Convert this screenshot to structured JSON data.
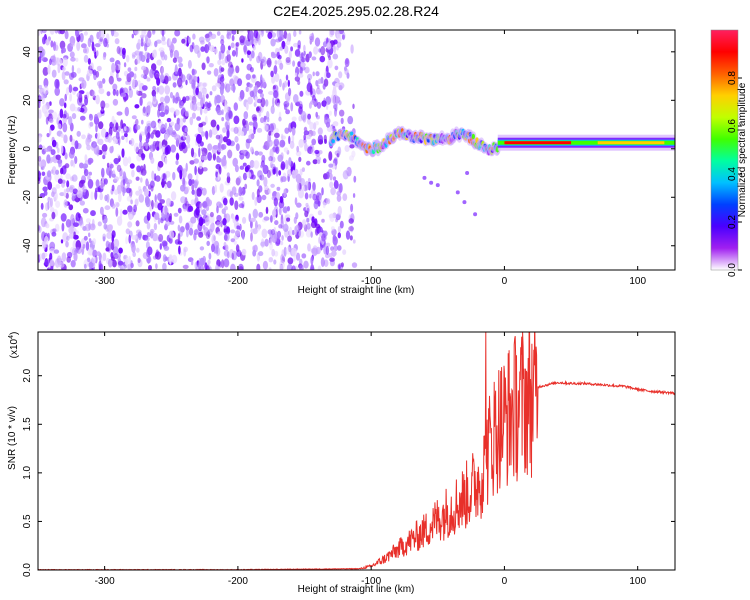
{
  "figure_title": "C2E4.2025.295.02.28.R24",
  "chart_data": [
    {
      "type": "heatmap",
      "title": "C2E4.2025.295.02.28.R24",
      "xlabel": "Height of straight line (km)",
      "ylabel": "Frequency (Hz)",
      "xlim": [
        -350,
        128
      ],
      "ylim": [
        -50,
        49
      ],
      "xticks": [
        -300,
        -200,
        -100,
        0,
        100
      ],
      "yticks": [
        -40,
        -20,
        0,
        20,
        40
      ],
      "colorbar": {
        "label": "Normalized spectral amplitude",
        "range": [
          0,
          1
        ],
        "ticks": [
          0.0,
          0.2,
          0.4,
          0.6,
          0.8
        ],
        "tick_labels": [
          "0.0",
          "0.2",
          "0.4",
          "0.6",
          "0.8"
        ],
        "colors": [
          "#ffffff",
          "#a020f0",
          "#4a00ff",
          "#0040ff",
          "#00c0ff",
          "#00ffa0",
          "#40ff00",
          "#c0ff00",
          "#ffd000",
          "#ff6000",
          "#ff0000",
          "#ff2060"
        ]
      },
      "regions": [
        {
          "name": "noise",
          "x_range": [
            -350,
            -112
          ],
          "freq_range": [
            -50,
            49
          ],
          "amplitude": 0.15
        },
        {
          "name": "transition",
          "x_range": [
            -130,
            -5
          ],
          "freq_center": 3,
          "amplitude": 0.5
        },
        {
          "name": "carrier",
          "x_range": [
            -5,
            128
          ],
          "freq_center": 2.5,
          "amplitude": 0.9
        }
      ]
    },
    {
      "type": "line",
      "xlabel": "Height of straight line (km)",
      "ylabel": "SNR (10 * v/v)",
      "y_multiplier": "(x10",
      "y_multiplier_exp": "4",
      "color": "#e8302a",
      "xlim": [
        -350,
        128
      ],
      "ylim": [
        0,
        2.45
      ],
      "xticks": [
        -300,
        -200,
        -100,
        0,
        100
      ],
      "yticks": [
        0.0,
        0.5,
        1.0,
        1.5,
        2.0
      ],
      "ytick_labels": [
        "0.0",
        "0.5",
        "1.0",
        "1.5",
        "2.0"
      ],
      "series": [
        {
          "name": "SNR",
          "x": [
            -350,
            -200,
            -110,
            -100,
            -90,
            -80,
            -70,
            -60,
            -50,
            -40,
            -30,
            -20,
            -15,
            -10,
            -5,
            0,
            10,
            20,
            30,
            40,
            50,
            60,
            70,
            80,
            90,
            100,
            110,
            120,
            128
          ],
          "y": [
            0.0,
            0.0,
            0.01,
            0.04,
            0.12,
            0.22,
            0.32,
            0.42,
            0.55,
            0.66,
            0.78,
            0.95,
            1.1,
            1.4,
            1.55,
            1.62,
            1.78,
            1.87,
            1.9,
            1.93,
            1.92,
            1.92,
            1.91,
            1.9,
            1.89,
            1.86,
            1.84,
            1.83,
            1.82
          ],
          "peak": {
            "x": -14,
            "y": 2.45
          }
        }
      ]
    }
  ]
}
